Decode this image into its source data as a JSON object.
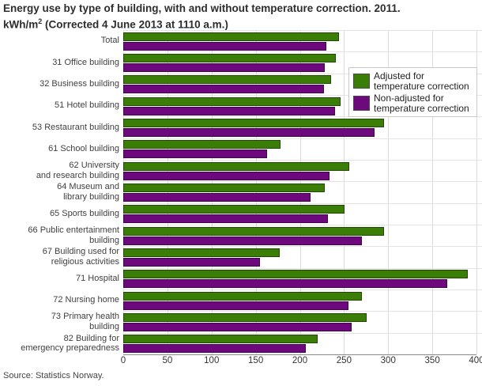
{
  "title": {
    "line1": "Energy use by type of building, with and without temperature correction. 2011.",
    "line2_prefix": "kWh/m",
    "line2_sup": "2",
    "line2_rest": " (Corrected 4 June 2013 at 1110 a.m.)"
  },
  "source": "Source: Statistics Norway.",
  "colors": {
    "adjusted": "#3a7d07",
    "non_adjusted": "#6d097d",
    "gridline": "#dcdcdc",
    "axis_line": "#8a8a8a",
    "legend_border": "#c9c9c9"
  },
  "legend": {
    "position": "top-right",
    "items": [
      {
        "label": "Adjusted for\ntemperature correction",
        "color_key": "adjusted",
        "icon": "green-swatch-icon"
      },
      {
        "label": "Non-adjusted for\ntemperature correction",
        "color_key": "non_adjusted",
        "icon": "purple-swatch-icon"
      }
    ]
  },
  "chart_data": {
    "type": "bar",
    "orientation": "horizontal",
    "title": "Energy use by type of building, with and without temperature correction. 2011. kWh/m2 (Corrected 4 June 2013 at 1110 a.m.)",
    "xlabel": "kWh/m2",
    "ylabel": "",
    "xlim": [
      0,
      400
    ],
    "x_ticks": [
      0,
      50,
      100,
      150,
      200,
      250,
      300,
      350,
      400
    ],
    "grid": true,
    "categories": [
      "Total",
      "31 Office building",
      "32 Business building",
      "51 Hotel building",
      "53 Restaurant building",
      "61 School building",
      "62 University\nand research building",
      "64 Museum and\nlibrary building",
      "65 Sports building",
      "66 Public entertainment\nbuilding",
      "67 Building used for\nreligious activities",
      "71 Hospital",
      "72 Nursing home",
      "73 Primary health\nbuilding",
      "82 Building for\nemergency preparedness"
    ],
    "series": [
      {
        "name": "Adjusted for temperature correction",
        "color_key": "adjusted",
        "values": [
          244,
          241,
          235,
          246,
          295,
          178,
          256,
          228,
          251,
          295,
          177,
          390,
          270,
          276,
          220
        ]
      },
      {
        "name": "Non-adjusted for temperature correction",
        "color_key": "non_adjusted",
        "values": [
          230,
          228,
          227,
          240,
          285,
          163,
          234,
          212,
          232,
          270,
          155,
          367,
          255,
          259,
          207
        ]
      }
    ]
  }
}
